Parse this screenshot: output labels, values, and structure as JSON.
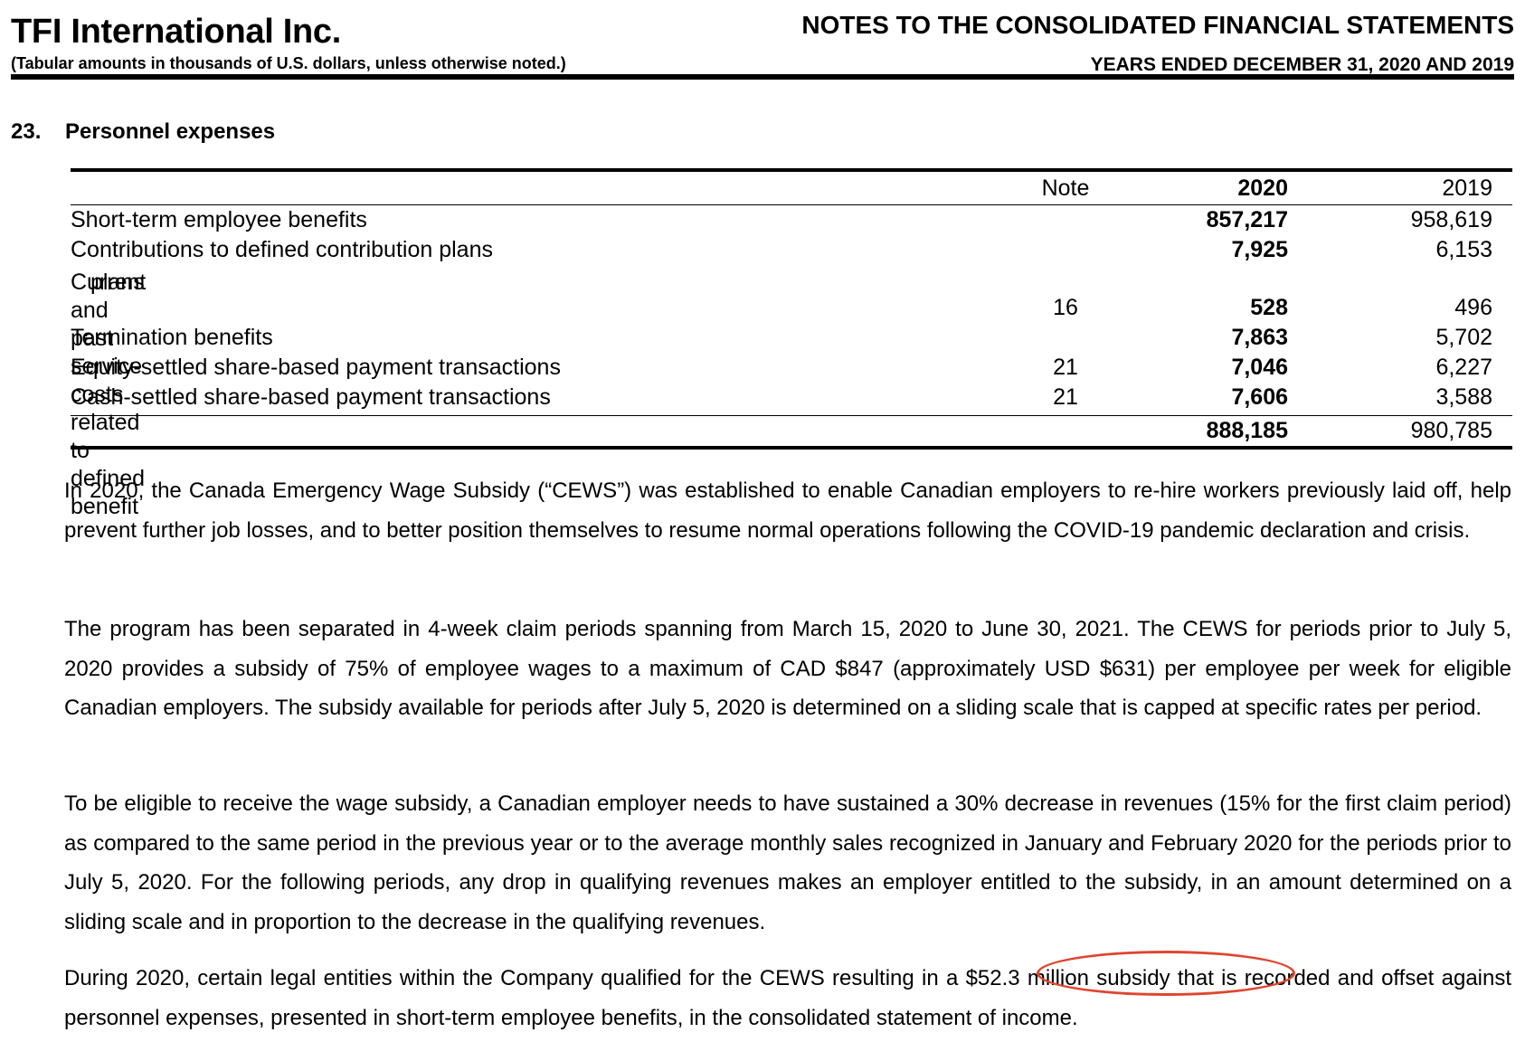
{
  "header": {
    "company": "TFI International Inc.",
    "units_note": "(Tabular amounts in thousands of U.S. dollars, unless otherwise noted.)",
    "notes_title": "NOTES TO THE CONSOLIDATED FINANCIAL STATEMENTS",
    "years": "YEARS ENDED DECEMBER 31, 2020 AND 2019"
  },
  "section": {
    "number": "23.",
    "title": "Personnel expenses"
  },
  "table": {
    "headers": {
      "note": "Note",
      "y2020": "2020",
      "y2019": "2019"
    },
    "rows": [
      {
        "label": "Short-term employee benefits",
        "note": "",
        "y2020": "857,217",
        "y2019": "958,619"
      },
      {
        "label": "Contributions to defined contribution plans",
        "note": "",
        "y2020": "7,925",
        "y2019": "6,153"
      },
      {
        "label_line1": "Current and past service costs related to defined benefit",
        "label_line2": "plans",
        "note": "16",
        "y2020": "528",
        "y2019": "496"
      },
      {
        "label": "Termination benefits",
        "note": "",
        "y2020": "7,863",
        "y2019": "5,702"
      },
      {
        "label": "Equity-settled share-based payment transactions",
        "note": "21",
        "y2020": "7,046",
        "y2019": "6,227"
      },
      {
        "label": "Cash-settled share-based payment transactions",
        "note": "21",
        "y2020": "7,606",
        "y2019": "3,588"
      }
    ],
    "total": {
      "y2020": "888,185",
      "y2019": "980,785"
    }
  },
  "paragraphs": {
    "p1": "In 2020, the Canada Emergency Wage Subsidy (“CEWS”) was established to enable Canadian employers to re-hire workers previously laid off, help prevent further job losses, and to better position themselves to resume normal operations following the COVID-19 pandemic declaration and crisis.",
    "p2": "The program has been separated in 4-week claim periods spanning from March 15, 2020 to June 30, 2021.  The CEWS for periods prior to July 5, 2020 provides a subsidy of 75% of employee wages to a maximum of CAD $847 (approximately USD $631) per employee per week for eligible Canadian employers. The subsidy available for periods after July 5, 2020 is determined on a sliding scale that is capped at specific rates per period.",
    "p3": "To be eligible to receive the wage subsidy, a Canadian employer needs to have sustained a 30% decrease in revenues (15% for the first claim period) as compared to the same period in the previous year or to the average monthly sales recognized in January and February 2020 for the periods prior to July 5, 2020. For the following periods, any drop in qualifying revenues makes an employer entitled to the subsidy, in an amount determined on a sliding scale and in proportion to the decrease in the qualifying revenues.",
    "p4_before": "During 2020, certain legal entities within the Company qualified for the CEWS resulting in ",
    "p4_highlight": "a $52.3 million subsidy",
    "p4_after": " that is recorded and offset against personnel expenses, presented in short-term employee benefits, in the consolidated statement of income."
  },
  "annotation_color": "#e0452f"
}
